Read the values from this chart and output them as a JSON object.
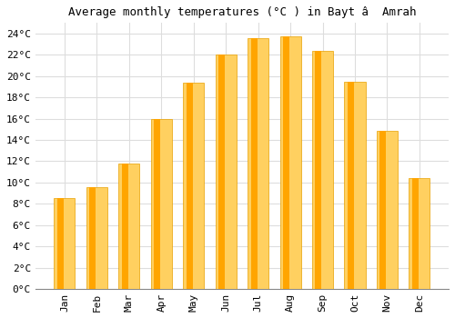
{
  "title": "Average monthly temperatures (°C ) in Bayt â  Amrah",
  "months": [
    "Jan",
    "Feb",
    "Mar",
    "Apr",
    "May",
    "Jun",
    "Jul",
    "Aug",
    "Sep",
    "Oct",
    "Nov",
    "Dec"
  ],
  "values": [
    8.5,
    9.6,
    11.8,
    16.0,
    19.4,
    22.0,
    23.6,
    23.7,
    22.4,
    19.5,
    14.9,
    10.4
  ],
  "bar_color_top": "#FFA500",
  "bar_color_bottom": "#FFD060",
  "bar_edge_color": "#E8A000",
  "background_color": "#FFFFFF",
  "plot_bg_color": "#FFFFFF",
  "grid_color": "#DDDDDD",
  "ylim": [
    0,
    25
  ],
  "yticks": [
    0,
    2,
    4,
    6,
    8,
    10,
    12,
    14,
    16,
    18,
    20,
    22,
    24
  ],
  "title_fontsize": 9,
  "tick_fontsize": 8,
  "font_family": "monospace"
}
